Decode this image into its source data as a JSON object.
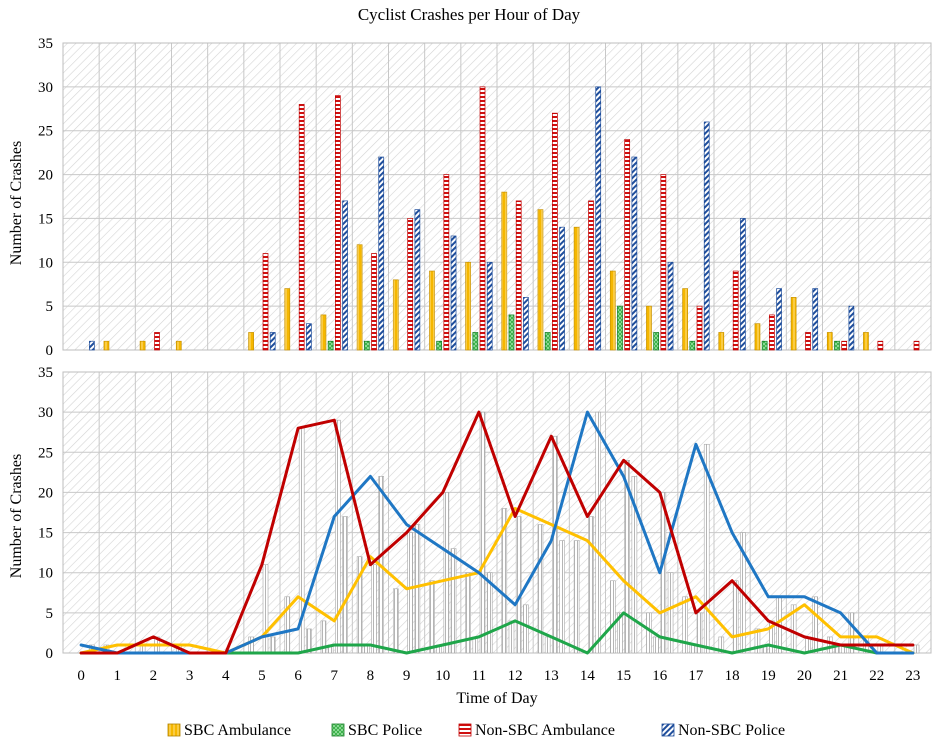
{
  "chart_data": {
    "title": "Cyclist Crashes per Hour of Day",
    "xlabel": "Time of Day",
    "ylabel": "Number of Crashes",
    "type": "bar",
    "grid": true,
    "legend_position": "bottom",
    "categories": [
      "0",
      "1",
      "2",
      "3",
      "4",
      "5",
      "6",
      "7",
      "8",
      "9",
      "10",
      "11",
      "12",
      "13",
      "14",
      "15",
      "16",
      "17",
      "18",
      "19",
      "20",
      "21",
      "22",
      "23"
    ],
    "ylim": [
      0,
      35
    ],
    "yticks": [
      0,
      5,
      10,
      15,
      20,
      25,
      30,
      35
    ],
    "series": [
      {
        "name": "SBC Ambulance",
        "color": "#F5B700",
        "line_color": "#FFC000",
        "pattern": "vertical-stripes",
        "values": [
          0,
          1,
          1,
          1,
          0,
          2,
          7,
          4,
          12,
          8,
          9,
          10,
          18,
          16,
          14,
          9,
          5,
          7,
          2,
          3,
          6,
          2,
          2,
          0
        ]
      },
      {
        "name": "SBC Police",
        "color": "#2BAA3A",
        "line_color": "#1FA64A",
        "pattern": "crosshatch",
        "values": [
          0,
          0,
          0,
          0,
          0,
          0,
          0,
          1,
          1,
          0,
          1,
          2,
          4,
          2,
          0,
          5,
          2,
          1,
          0,
          1,
          0,
          1,
          0,
          0
        ]
      },
      {
        "name": "Non-SBC Ambulance",
        "color": "#C00000",
        "line_color": "#C00000",
        "pattern": "horizontal-stripes",
        "values": [
          0,
          0,
          2,
          0,
          0,
          11,
          28,
          29,
          11,
          15,
          20,
          30,
          17,
          27,
          17,
          24,
          20,
          5,
          9,
          4,
          2,
          1,
          1,
          1
        ]
      },
      {
        "name": "Non-SBC Police",
        "color": "#1F4E9C",
        "line_color": "#1F77C4",
        "pattern": "diagonal-stripes",
        "values": [
          1,
          0,
          0,
          0,
          0,
          2,
          3,
          17,
          22,
          16,
          13,
          10,
          6,
          14,
          30,
          22,
          10,
          26,
          15,
          7,
          7,
          5,
          0,
          0
        ]
      }
    ],
    "panels": [
      {
        "type": "bar",
        "description_position": "top"
      },
      {
        "type": "line+bar",
        "description_position": "bottom"
      }
    ]
  }
}
